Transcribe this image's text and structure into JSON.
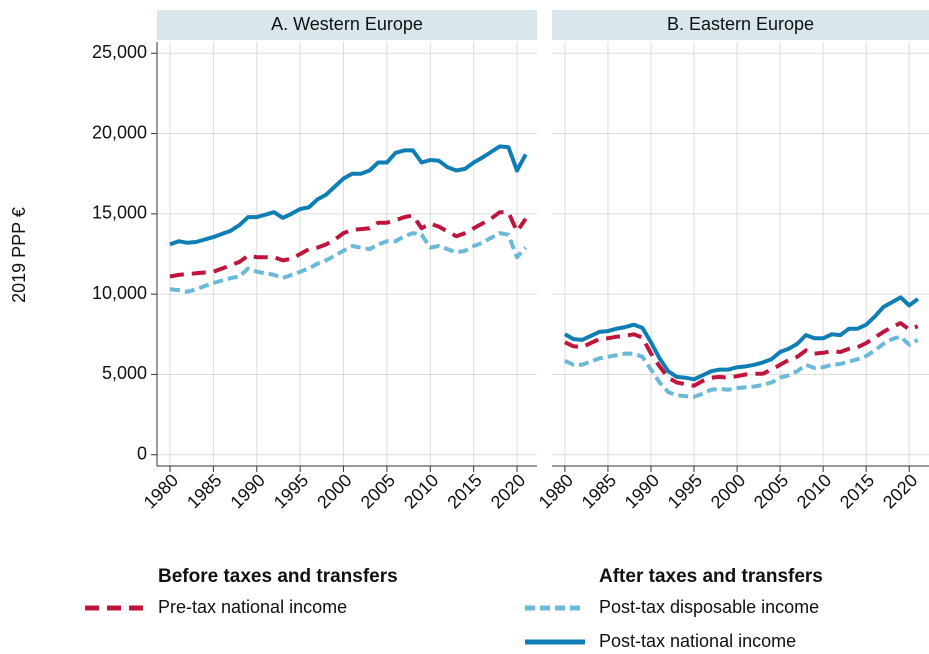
{
  "chart_data": [
    {
      "type": "line",
      "title": "A. Western Europe",
      "y_label": "2019 PPP €",
      "legend_titles": [
        "Before taxes and transfers",
        "After taxes and transfers"
      ],
      "xlim": [
        1978.5,
        2022.3
      ],
      "ylim": [
        -700,
        25700
      ],
      "xticks": [
        1980,
        1985,
        1990,
        1995,
        2000,
        2005,
        2010,
        2015,
        2020
      ],
      "yticks": [
        0,
        {
          "value": 5000,
          "label": "5,000"
        },
        {
          "value": 10000,
          "label": "10,000"
        },
        {
          "value": 15000,
          "label": "15,000"
        },
        {
          "value": 20000,
          "label": "20,000"
        },
        {
          "value": 25000,
          "label": "25,000"
        }
      ],
      "grid": true,
      "x": [
        1980,
        1981,
        1982,
        1983,
        1984,
        1985,
        1986,
        1987,
        1988,
        1989,
        1990,
        1991,
        1992,
        1993,
        1994,
        1995,
        1996,
        1997,
        1998,
        1999,
        2000,
        2001,
        2002,
        2003,
        2004,
        2005,
        2006,
        2007,
        2008,
        2009,
        2010,
        2011,
        2012,
        2013,
        2014,
        2015,
        2016,
        2017,
        2018,
        2019,
        2020,
        2021
      ],
      "series": [
        {
          "name": "Pre-tax national income",
          "color": "#c0143c",
          "dash": "14,8",
          "values": [
            11100,
            11200,
            11250,
            11300,
            11350,
            11400,
            11600,
            11800,
            12000,
            12400,
            12300,
            12300,
            12300,
            12100,
            12200,
            12500,
            12800,
            12900,
            13100,
            13400,
            13800,
            14000,
            14050,
            14100,
            14450,
            14450,
            14600,
            14800,
            14900,
            14100,
            14400,
            14200,
            13900,
            13600,
            13800,
            14100,
            14400,
            14700,
            15100,
            15100,
            13900,
            14700
          ]
        },
        {
          "name": "Post-tax disposable income",
          "color": "#6bb9d8",
          "dash": "10,5",
          "values": [
            10300,
            10250,
            10150,
            10300,
            10500,
            10700,
            10850,
            11000,
            11100,
            11600,
            11400,
            11300,
            11200,
            11000,
            11200,
            11400,
            11600,
            11900,
            12100,
            12400,
            12700,
            13000,
            12900,
            12800,
            13100,
            13300,
            13300,
            13600,
            13800,
            13700,
            12900,
            13000,
            12800,
            12600,
            12700,
            13000,
            13200,
            13500,
            13800,
            13700,
            12300,
            12900
          ]
        },
        {
          "name": "Post-tax national income",
          "color": "#0e7eb5",
          "dash": "none",
          "values": [
            13100,
            13300,
            13200,
            13250,
            13400,
            13550,
            13750,
            13950,
            14300,
            14800,
            14800,
            14950,
            15100,
            14750,
            15000,
            15300,
            15400,
            15900,
            16200,
            16700,
            17200,
            17500,
            17500,
            17700,
            18200,
            18200,
            18800,
            18950,
            18950,
            18200,
            18350,
            18300,
            17900,
            17700,
            17800,
            18200,
            18500,
            18850,
            19200,
            19150,
            17700,
            18700
          ]
        }
      ]
    },
    {
      "type": "line",
      "title": "B. Eastern Europe",
      "xlim": [
        1978.5,
        2022.3
      ],
      "ylim": [
        -700,
        25700
      ],
      "xticks": [
        1980,
        1985,
        1990,
        1995,
        2000,
        2005,
        2010,
        2015,
        2020
      ],
      "yticks": [
        0,
        5000,
        10000,
        15000,
        20000,
        25000
      ],
      "grid": true,
      "x": [
        1980,
        1981,
        1982,
        1983,
        1984,
        1985,
        1986,
        1987,
        1988,
        1989,
        1990,
        1991,
        1992,
        1993,
        1994,
        1995,
        1996,
        1997,
        1998,
        1999,
        2000,
        2001,
        2002,
        2003,
        2004,
        2005,
        2006,
        2007,
        2008,
        2009,
        2010,
        2011,
        2012,
        2013,
        2014,
        2015,
        2016,
        2017,
        2018,
        2019,
        2020,
        2021
      ],
      "series": [
        {
          "name": "Pre-tax national income",
          "color": "#c0143c",
          "dash": "14,8",
          "values": [
            7000,
            6750,
            6700,
            6950,
            7200,
            7250,
            7350,
            7400,
            7500,
            7300,
            6300,
            5500,
            4800,
            4500,
            4400,
            4300,
            4600,
            4800,
            4850,
            4800,
            4900,
            5000,
            5050,
            5050,
            5300,
            5600,
            5900,
            6100,
            6500,
            6300,
            6350,
            6450,
            6400,
            6600,
            6700,
            6950,
            7300,
            7650,
            7950,
            8200,
            7800,
            8000
          ]
        },
        {
          "name": "Post-tax disposable income",
          "color": "#6bb9d8",
          "dash": "10,5",
          "values": [
            5850,
            5600,
            5600,
            5800,
            6000,
            6100,
            6200,
            6300,
            6300,
            6100,
            5300,
            4500,
            3900,
            3700,
            3650,
            3600,
            3800,
            4050,
            4100,
            4050,
            4150,
            4200,
            4250,
            4350,
            4500,
            4800,
            4950,
            5200,
            5600,
            5400,
            5450,
            5600,
            5650,
            5800,
            5950,
            6150,
            6500,
            6900,
            7200,
            7350,
            6850,
            7150
          ]
        },
        {
          "name": "Post-tax national income",
          "color": "#0e7eb5",
          "dash": "none",
          "values": [
            7500,
            7200,
            7150,
            7400,
            7650,
            7700,
            7850,
            7950,
            8100,
            7900,
            7000,
            6000,
            5200,
            4850,
            4800,
            4700,
            4950,
            5200,
            5300,
            5300,
            5450,
            5500,
            5600,
            5750,
            5950,
            6400,
            6600,
            6900,
            7450,
            7250,
            7250,
            7500,
            7450,
            7850,
            7850,
            8100,
            8600,
            9200,
            9500,
            9800,
            9300,
            9700
          ]
        }
      ]
    }
  ]
}
